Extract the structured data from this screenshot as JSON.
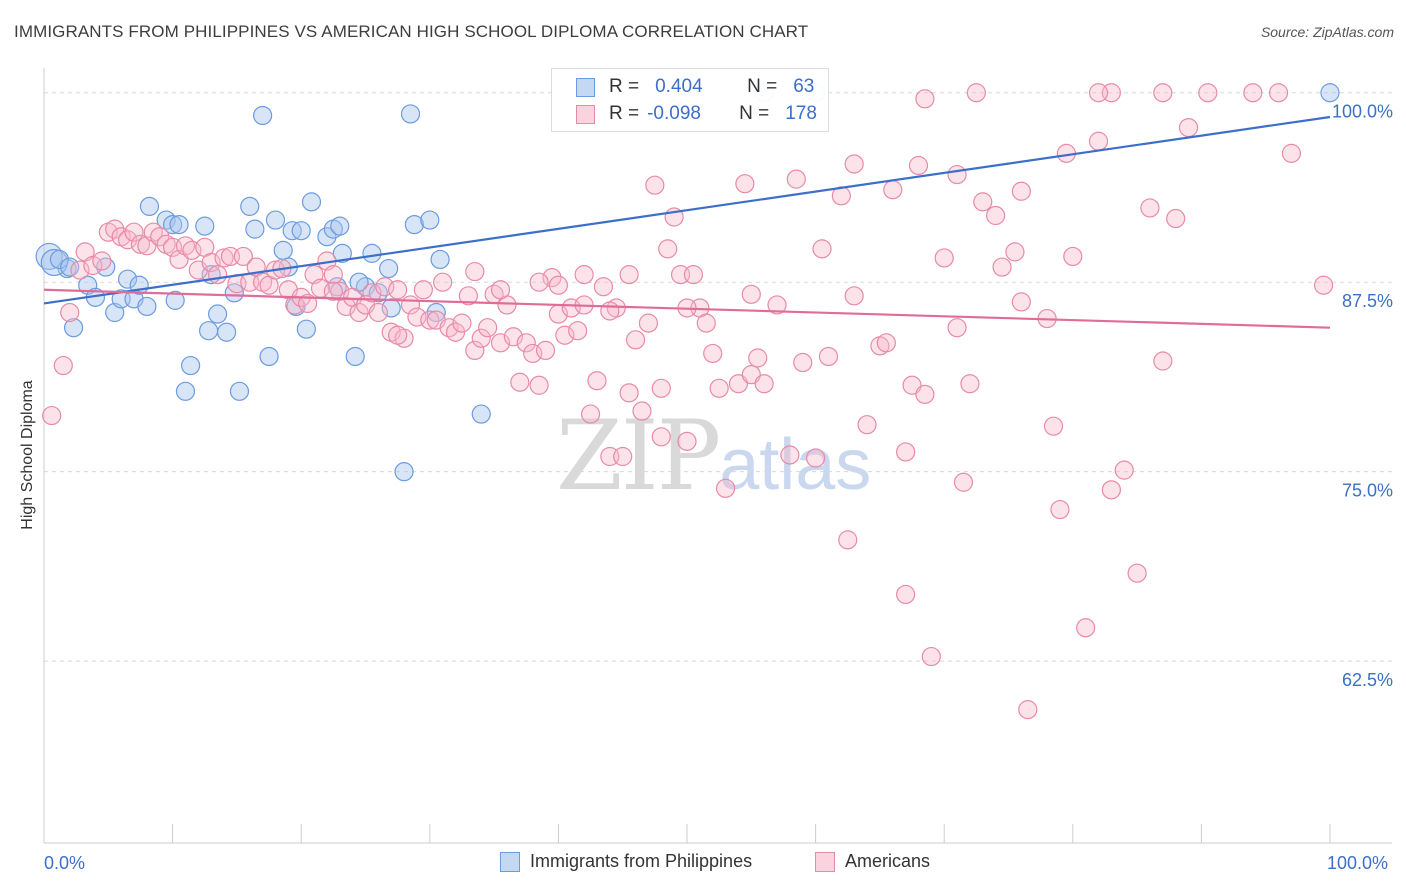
{
  "header": {
    "title": "IMMIGRANTS FROM PHILIPPINES VS AMERICAN HIGH SCHOOL DIPLOMA CORRELATION CHART",
    "source": "Source: ZipAtlas.com"
  },
  "watermark": {
    "zip": "ZIP",
    "atlas": "atlas"
  },
  "legend": {
    "rows": [
      {
        "r_label": "R =",
        "r_value": "0.404",
        "n_label": "N =",
        "n_value": "63",
        "fill": "#a9c6ee",
        "stroke": "#6b9be0"
      },
      {
        "r_label": "R =",
        "r_value": "-0.098",
        "n_label": "N =",
        "n_value": "178",
        "fill": "#f7b8cb",
        "stroke": "#e88aa8"
      }
    ]
  },
  "bottom_legend": [
    {
      "label": "Immigrants from Philippines",
      "fill": "#a9c6ee",
      "stroke": "#6b9be0"
    },
    {
      "label": "Americans",
      "fill": "#f7b8cb",
      "stroke": "#e88aa8"
    }
  ],
  "chart_data": {
    "type": "scatter",
    "title": "IMMIGRANTS FROM PHILIPPINES VS AMERICAN HIGH SCHOOL DIPLOMA CORRELATION CHART",
    "xlabel": "",
    "ylabel": "High School Diploma",
    "x_tick_labels": [
      "0.0%",
      "100.0%"
    ],
    "y_tick_labels": [
      "100.0%",
      "87.5%",
      "75.0%",
      "62.5%"
    ],
    "y_ticks": [
      100.0,
      87.5,
      75.0,
      62.5
    ],
    "xlim": [
      0,
      100
    ],
    "ylim": [
      50.5,
      101.5
    ],
    "grid": "horizontal dashed",
    "legend_placement": "top-center",
    "colors": {
      "blue": "#3c6fc9",
      "pink": "#e06c98"
    },
    "series": [
      {
        "name": "Immigrants from Philippines",
        "color": "#6b9be0",
        "trend": {
          "x": [
            0,
            100
          ],
          "y": [
            86.1,
            98.4
          ]
        },
        "points": [
          [
            0.4,
            89.2
          ],
          [
            1.8,
            88.4
          ],
          [
            3.4,
            87.3
          ],
          [
            4.0,
            86.5
          ],
          [
            4.8,
            88.5
          ],
          [
            2.3,
            84.5
          ],
          [
            5.5,
            85.5
          ],
          [
            6.0,
            86.4
          ],
          [
            6.5,
            87.7
          ],
          [
            7.0,
            86.4
          ],
          [
            7.4,
            87.3
          ],
          [
            8.0,
            85.9
          ],
          [
            8.2,
            92.5
          ],
          [
            9.5,
            91.6
          ],
          [
            10.0,
            91.3
          ],
          [
            10.5,
            91.3
          ],
          [
            10.2,
            86.3
          ],
          [
            11.0,
            80.3
          ],
          [
            11.4,
            82.0
          ],
          [
            12.5,
            91.2
          ],
          [
            12.8,
            84.3
          ],
          [
            13.5,
            85.4
          ],
          [
            14.2,
            84.2
          ],
          [
            14.8,
            86.8
          ],
          [
            15.2,
            80.3
          ],
          [
            16.0,
            92.5
          ],
          [
            16.4,
            91.0
          ],
          [
            17.0,
            98.5
          ],
          [
            17.5,
            82.6
          ],
          [
            18.0,
            91.6
          ],
          [
            18.6,
            89.6
          ],
          [
            19.3,
            90.9
          ],
          [
            19.6,
            85.9
          ],
          [
            20.0,
            90.9
          ],
          [
            20.4,
            84.4
          ],
          [
            20.8,
            92.8
          ],
          [
            22.0,
            90.5
          ],
          [
            22.5,
            91.0
          ],
          [
            23.0,
            91.2
          ],
          [
            23.2,
            89.4
          ],
          [
            22.8,
            87.2
          ],
          [
            24.2,
            82.6
          ],
          [
            25.0,
            87.2
          ],
          [
            25.5,
            89.4
          ],
          [
            26.8,
            88.4
          ],
          [
            28.0,
            75.0
          ],
          [
            28.5,
            98.6
          ],
          [
            28.8,
            91.3
          ],
          [
            30.0,
            91.6
          ],
          [
            30.5,
            85.5
          ],
          [
            30.8,
            89.0
          ],
          [
            34.0,
            78.8
          ],
          [
            56.0,
            100.0
          ],
          [
            60.0,
            100.0
          ],
          [
            100.0,
            100.0
          ],
          [
            0.8,
            88.8
          ],
          [
            1.2,
            89.0
          ],
          [
            2.0,
            88.5
          ],
          [
            26.0,
            86.8
          ],
          [
            24.5,
            87.5
          ],
          [
            27.0,
            85.8
          ],
          [
            19.0,
            88.5
          ],
          [
            13.0,
            88.0
          ]
        ]
      },
      {
        "name": "Americans",
        "color": "#e88aa8",
        "trend": {
          "x": [
            0,
            100
          ],
          "y": [
            87.0,
            84.5
          ]
        },
        "points": [
          [
            0.6,
            78.7
          ],
          [
            1.5,
            82.0
          ],
          [
            2.0,
            85.5
          ],
          [
            2.8,
            88.3
          ],
          [
            3.2,
            89.5
          ],
          [
            3.8,
            88.6
          ],
          [
            4.5,
            88.9
          ],
          [
            5.0,
            90.8
          ],
          [
            5.5,
            91.0
          ],
          [
            6.0,
            90.5
          ],
          [
            6.5,
            90.3
          ],
          [
            7.0,
            90.8
          ],
          [
            7.5,
            90.0
          ],
          [
            8.0,
            89.9
          ],
          [
            8.5,
            90.8
          ],
          [
            9.0,
            90.5
          ],
          [
            9.5,
            90.0
          ],
          [
            10.0,
            89.8
          ],
          [
            10.5,
            89.0
          ],
          [
            11.0,
            89.9
          ],
          [
            11.5,
            89.6
          ],
          [
            12.0,
            88.3
          ],
          [
            12.5,
            89.8
          ],
          [
            13.0,
            88.8
          ],
          [
            13.5,
            88.0
          ],
          [
            14.0,
            89.1
          ],
          [
            14.5,
            89.2
          ],
          [
            15.0,
            87.4
          ],
          [
            15.5,
            89.2
          ],
          [
            16.0,
            87.5
          ],
          [
            16.5,
            88.5
          ],
          [
            17.0,
            87.5
          ],
          [
            17.5,
            87.3
          ],
          [
            18.0,
            88.3
          ],
          [
            18.5,
            88.4
          ],
          [
            19.0,
            87.0
          ],
          [
            19.5,
            86.0
          ],
          [
            20.0,
            86.5
          ],
          [
            20.5,
            86.1
          ],
          [
            21.0,
            88.0
          ],
          [
            21.5,
            87.1
          ],
          [
            22.0,
            88.9
          ],
          [
            22.5,
            88.0
          ],
          [
            23.0,
            86.9
          ],
          [
            23.5,
            85.9
          ],
          [
            24.0,
            86.5
          ],
          [
            24.5,
            85.5
          ],
          [
            25.0,
            86.0
          ],
          [
            25.5,
            86.8
          ],
          [
            26.0,
            85.5
          ],
          [
            26.5,
            87.2
          ],
          [
            27.0,
            84.2
          ],
          [
            27.5,
            87.0
          ],
          [
            28.0,
            83.8
          ],
          [
            28.5,
            86.0
          ],
          [
            29.0,
            85.2
          ],
          [
            29.5,
            87.0
          ],
          [
            30.0,
            85.0
          ],
          [
            30.5,
            85.0
          ],
          [
            31.0,
            87.5
          ],
          [
            31.5,
            84.5
          ],
          [
            32.0,
            84.2
          ],
          [
            32.5,
            84.8
          ],
          [
            33.0,
            86.6
          ],
          [
            33.5,
            83.0
          ],
          [
            34.0,
            83.8
          ],
          [
            34.5,
            84.5
          ],
          [
            35.0,
            86.7
          ],
          [
            35.5,
            83.5
          ],
          [
            36.0,
            86.0
          ],
          [
            36.5,
            83.9
          ],
          [
            37.0,
            80.9
          ],
          [
            37.5,
            83.5
          ],
          [
            38.0,
            82.8
          ],
          [
            38.5,
            80.7
          ],
          [
            39.0,
            83.0
          ],
          [
            39.5,
            87.8
          ],
          [
            40.0,
            85.4
          ],
          [
            40.5,
            84.0
          ],
          [
            41.0,
            85.8
          ],
          [
            41.5,
            84.3
          ],
          [
            42.0,
            88.0
          ],
          [
            42.5,
            78.8
          ],
          [
            43.0,
            81.0
          ],
          [
            43.5,
            87.2
          ],
          [
            44.0,
            76.0
          ],
          [
            44.5,
            85.8
          ],
          [
            45.0,
            76.0
          ],
          [
            45.5,
            88.0
          ],
          [
            46.0,
            83.7
          ],
          [
            46.5,
            79.0
          ],
          [
            47.0,
            84.8
          ],
          [
            47.5,
            93.9
          ],
          [
            48.0,
            77.3
          ],
          [
            48.5,
            89.7
          ],
          [
            49.0,
            91.8
          ],
          [
            49.5,
            88.0
          ],
          [
            50.0,
            77.0
          ],
          [
            50.5,
            88.0
          ],
          [
            51.0,
            85.8
          ],
          [
            51.5,
            84.8
          ],
          [
            52.0,
            82.8
          ],
          [
            52.5,
            80.5
          ],
          [
            53.0,
            73.9
          ],
          [
            54.0,
            80.8
          ],
          [
            54.5,
            94.0
          ],
          [
            55.0,
            81.4
          ],
          [
            55.5,
            82.5
          ],
          [
            56.0,
            80.8
          ],
          [
            57.0,
            86.0
          ],
          [
            58.0,
            76.1
          ],
          [
            58.5,
            94.3
          ],
          [
            59.0,
            82.2
          ],
          [
            60.0,
            75.9
          ],
          [
            60.5,
            89.7
          ],
          [
            61.0,
            82.6
          ],
          [
            62.0,
            93.2
          ],
          [
            62.5,
            70.5
          ],
          [
            63.0,
            86.6
          ],
          [
            64.0,
            78.1
          ],
          [
            65.0,
            83.3
          ],
          [
            65.5,
            83.5
          ],
          [
            66.0,
            93.6
          ],
          [
            67.0,
            76.3
          ],
          [
            67.5,
            80.7
          ],
          [
            68.0,
            95.2
          ],
          [
            68.5,
            80.1
          ],
          [
            69.0,
            62.8
          ],
          [
            70.0,
            89.1
          ],
          [
            71.0,
            94.6
          ],
          [
            71.5,
            74.3
          ],
          [
            72.0,
            80.8
          ],
          [
            73.0,
            92.8
          ],
          [
            74.0,
            91.9
          ],
          [
            74.5,
            88.5
          ],
          [
            75.5,
            89.5
          ],
          [
            76.0,
            93.5
          ],
          [
            76.5,
            59.3
          ],
          [
            78.0,
            85.1
          ],
          [
            78.5,
            78.0
          ],
          [
            79.0,
            72.5
          ],
          [
            80.0,
            89.2
          ],
          [
            81.0,
            64.7
          ],
          [
            82.0,
            96.8
          ],
          [
            83.0,
            73.8
          ],
          [
            84.0,
            75.1
          ],
          [
            85.0,
            68.3
          ],
          [
            86.0,
            92.4
          ],
          [
            87.0,
            82.3
          ],
          [
            88.0,
            91.7
          ],
          [
            89.0,
            97.7
          ],
          [
            90.5,
            100.0
          ],
          [
            96.0,
            100.0
          ],
          [
            97.0,
            96.0
          ],
          [
            99.5,
            87.3
          ],
          [
            68.5,
            99.6
          ],
          [
            67.0,
            66.9
          ],
          [
            63.0,
            95.3
          ],
          [
            94.0,
            100.0
          ],
          [
            79.5,
            96.0
          ],
          [
            87.0,
            100.0
          ],
          [
            83.0,
            100.0
          ],
          [
            72.5,
            100.0
          ],
          [
            82.0,
            100.0
          ],
          [
            76.0,
            86.2
          ],
          [
            48.0,
            80.5
          ],
          [
            45.5,
            80.2
          ],
          [
            22.5,
            86.9
          ],
          [
            44.0,
            85.6
          ],
          [
            33.5,
            88.2
          ],
          [
            38.5,
            87.5
          ],
          [
            71.0,
            84.5
          ],
          [
            55.0,
            86.7
          ],
          [
            50.0,
            85.8
          ],
          [
            42.0,
            86.0
          ],
          [
            35.5,
            87.0
          ],
          [
            40.0,
            87.3
          ],
          [
            27.5,
            84.0
          ]
        ]
      }
    ]
  }
}
